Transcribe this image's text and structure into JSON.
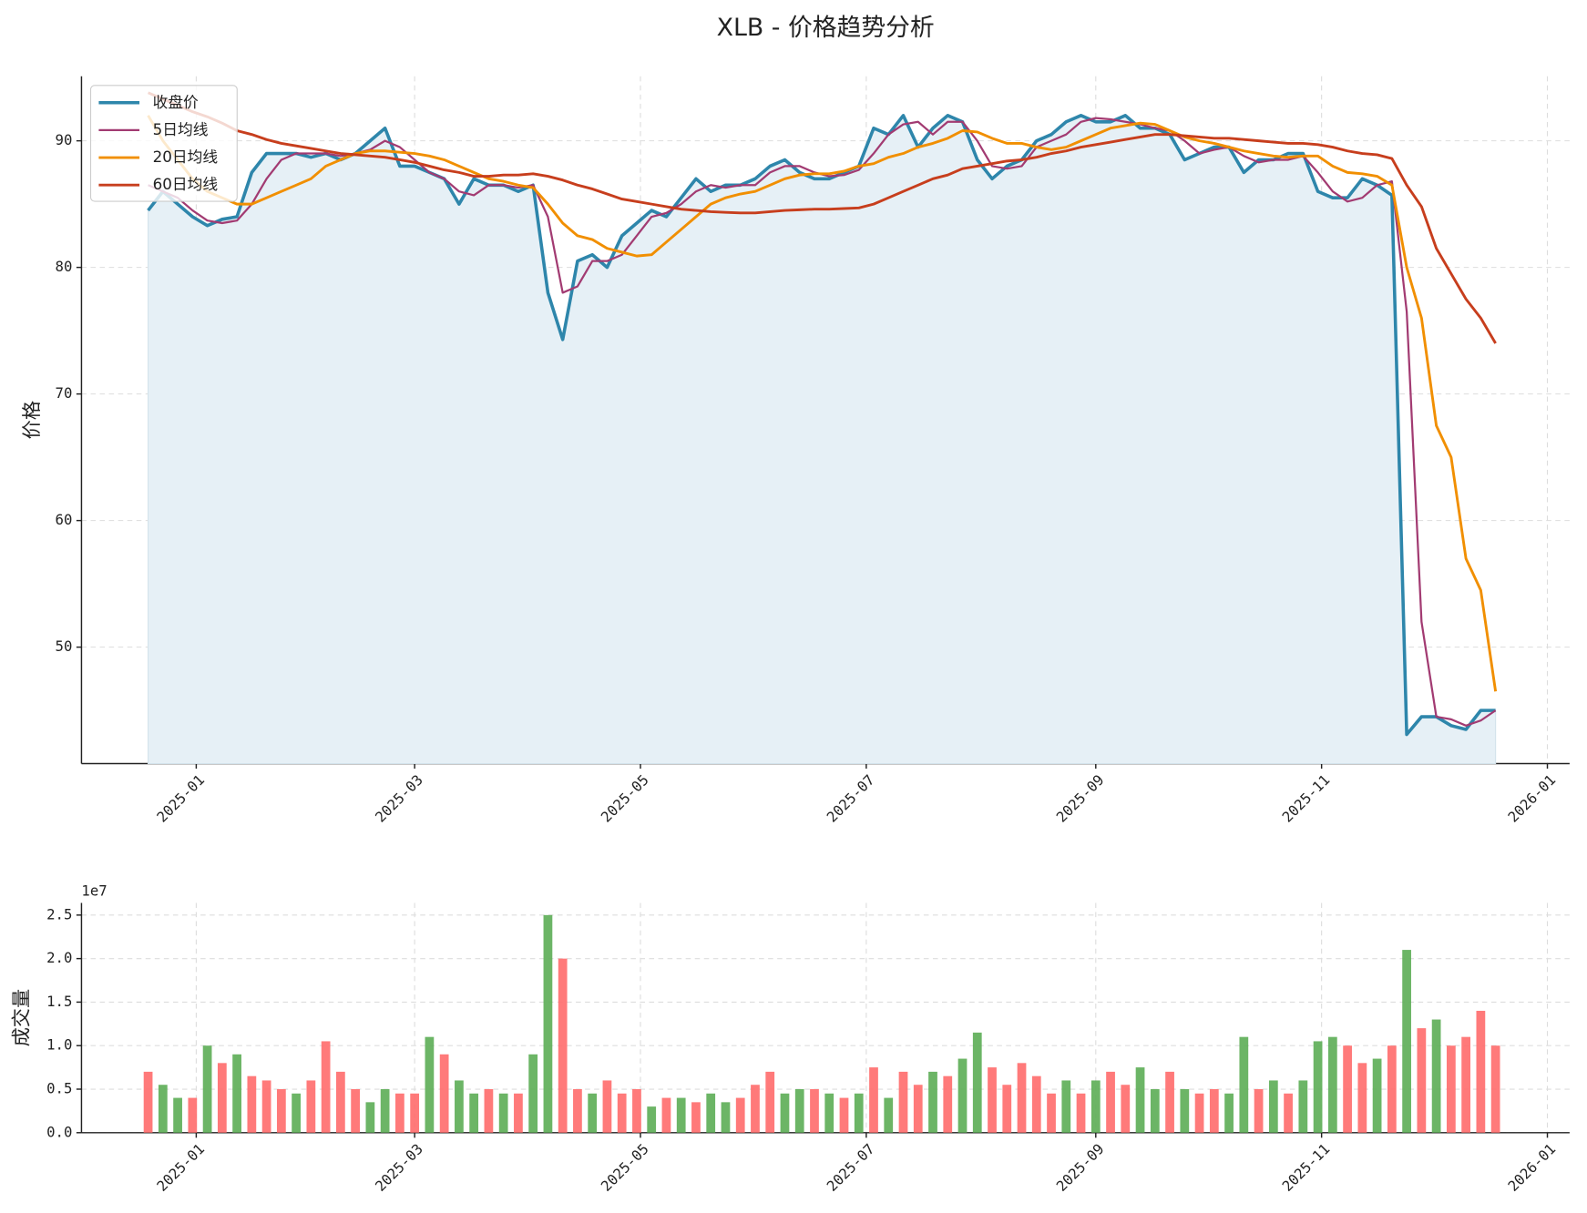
{
  "chart_data": [
    {
      "type": "line",
      "title": "XLB - 价格趋势分析",
      "y_label": "价格",
      "x": [
        20076,
        20080,
        20084,
        20088,
        20092,
        20096,
        20100,
        20104,
        20108,
        20112,
        20116,
        20120,
        20124,
        20128,
        20132,
        20136,
        20140,
        20144,
        20148,
        20152,
        20156,
        20160,
        20164,
        20168,
        20172,
        20176,
        20180,
        20184,
        20188,
        20192,
        20196,
        20200,
        20204,
        20208,
        20212,
        20216,
        20220,
        20224,
        20228,
        20232,
        20236,
        20240,
        20244,
        20248,
        20252,
        20256,
        20260,
        20264,
        20268,
        20272,
        20276,
        20280,
        20284,
        20288,
        20292,
        20296,
        20300,
        20304,
        20308,
        20312,
        20316,
        20320,
        20324,
        20328,
        20332,
        20336,
        20340,
        20344,
        20348,
        20352,
        20356,
        20360,
        20364,
        20368,
        20372,
        20376,
        20380,
        20384,
        20388,
        20392,
        20396,
        20400,
        20404,
        20408,
        20412,
        20416,
        20420,
        20424,
        20428,
        20432,
        20436,
        20440
      ],
      "xlim": [
        20058,
        20460
      ],
      "xticks": [
        {
          "value": 20089,
          "label": "2025-01"
        },
        {
          "value": 20148,
          "label": "2025-03"
        },
        {
          "value": 20209,
          "label": "2025-05"
        },
        {
          "value": 20270,
          "label": "2025-07"
        },
        {
          "value": 20332,
          "label": "2025-09"
        },
        {
          "value": 20393,
          "label": "2025-11"
        },
        {
          "value": 20454,
          "label": "2026-01"
        }
      ],
      "ylim": [
        40.8,
        95.1
      ],
      "yticks": [
        50,
        60,
        70,
        80,
        90
      ],
      "grid": true,
      "legend": "upper left",
      "series": [
        {
          "name": "收盘价",
          "color": "#2e86ab",
          "fill_color": "#e6f0f6",
          "values": [
            84.5,
            86,
            85,
            84,
            83.3,
            83.8,
            84,
            87.5,
            89,
            89,
            89,
            88.7,
            89,
            88.5,
            89,
            90,
            91,
            88,
            88,
            87.5,
            87,
            85,
            87,
            86.5,
            86.5,
            86,
            86.5,
            78,
            74.3,
            80.5,
            81,
            80,
            82.5,
            83.5,
            84.5,
            84,
            85.5,
            87,
            86,
            86.5,
            86.5,
            87,
            88,
            88.5,
            87.5,
            87,
            87,
            87.5,
            88,
            91,
            90.5,
            92,
            89.5,
            91,
            92,
            91.5,
            88.5,
            87,
            88,
            88.5,
            90,
            90.5,
            91.5,
            92,
            91.5,
            91.5,
            92,
            91,
            91,
            90.5,
            88.5,
            89,
            89.5,
            89.5,
            87.5,
            88.5,
            88.5,
            89,
            89,
            86,
            85.5,
            85.5,
            87,
            86.5,
            85.7,
            43.1,
            44.5,
            44.5,
            43.8,
            43.5,
            45,
            45
          ]
        },
        {
          "name": "5日均线",
          "color": "#a23b72",
          "values": [
            86.5,
            86,
            85.5,
            84.5,
            83.7,
            83.5,
            83.7,
            85,
            87,
            88.5,
            89,
            89,
            89,
            88.8,
            89,
            89.3,
            90,
            89.5,
            88.5,
            87.5,
            87,
            86,
            85.7,
            86.5,
            86.5,
            86.3,
            86.5,
            84,
            78,
            78.5,
            80.5,
            80.5,
            81,
            82.5,
            84,
            84.3,
            85,
            86,
            86.5,
            86.3,
            86.5,
            86.5,
            87.5,
            88,
            88,
            87.5,
            87.2,
            87.3,
            87.7,
            89,
            90.5,
            91.3,
            91.5,
            90.5,
            91.5,
            91.5,
            90,
            88,
            87.8,
            88,
            89.5,
            90,
            90.5,
            91.5,
            91.8,
            91.7,
            91.5,
            91.3,
            91,
            90.8,
            90,
            89,
            89.3,
            89.5,
            88.8,
            88.3,
            88.5,
            88.5,
            88.8,
            87.5,
            86,
            85.2,
            85.5,
            86.5,
            86.8,
            76.5,
            52,
            44.5,
            44.3,
            43.8,
            44.2,
            45
          ]
        },
        {
          "name": "20日均线",
          "color": "#f18f01",
          "values": [
            92,
            90,
            88.5,
            87,
            86,
            85.5,
            85,
            85,
            85.5,
            86,
            86.5,
            87,
            88,
            88.5,
            89,
            89.2,
            89.2,
            89.1,
            89,
            88.8,
            88.5,
            88,
            87.5,
            87,
            86.8,
            86.5,
            86.3,
            85,
            83.5,
            82.5,
            82.2,
            81.5,
            81.2,
            80.9,
            81,
            82,
            83,
            84,
            85,
            85.5,
            85.8,
            86,
            86.5,
            87,
            87.3,
            87.4,
            87.4,
            87.6,
            88,
            88.2,
            88.7,
            89,
            89.5,
            89.8,
            90.2,
            90.8,
            90.7,
            90.2,
            89.8,
            89.8,
            89.5,
            89.3,
            89.5,
            90,
            90.5,
            91,
            91.2,
            91.4,
            91.3,
            90.8,
            90.3,
            90,
            89.8,
            89.5,
            89.2,
            89,
            88.8,
            88.7,
            88.8,
            88.8,
            88,
            87.5,
            87.4,
            87.2,
            86.5,
            80,
            76,
            67.5,
            65,
            57,
            54.5,
            46.5
          ]
        },
        {
          "name": "60日均线",
          "color": "#c73e1d",
          "values": [
            93.8,
            93.3,
            92.8,
            92.3,
            91.9,
            91.4,
            90.8,
            90.5,
            90.1,
            89.8,
            89.6,
            89.4,
            89.2,
            89,
            88.9,
            88.8,
            88.7,
            88.5,
            88.3,
            88,
            87.7,
            87.5,
            87.2,
            87.2,
            87.3,
            87.3,
            87.4,
            87.2,
            86.9,
            86.5,
            86.2,
            85.8,
            85.4,
            85.2,
            85,
            84.8,
            84.6,
            84.5,
            84.4,
            84.35,
            84.3,
            84.3,
            84.4,
            84.5,
            84.55,
            84.6,
            84.6,
            84.65,
            84.7,
            85,
            85.5,
            86,
            86.5,
            87,
            87.3,
            87.8,
            88,
            88.2,
            88.4,
            88.5,
            88.7,
            89,
            89.2,
            89.5,
            89.7,
            89.9,
            90.1,
            90.3,
            90.5,
            90.5,
            90.4,
            90.3,
            90.2,
            90.2,
            90.1,
            90,
            89.9,
            89.8,
            89.8,
            89.7,
            89.5,
            89.2,
            89,
            88.9,
            88.6,
            86.5,
            84.8,
            81.5,
            79.5,
            77.5,
            76,
            74
          ]
        }
      ]
    },
    {
      "type": "bar",
      "y_label": "成交量",
      "offset_label": "1e7",
      "x": [
        20076,
        20080,
        20084,
        20088,
        20092,
        20096,
        20100,
        20104,
        20108,
        20112,
        20116,
        20120,
        20124,
        20128,
        20132,
        20136,
        20140,
        20144,
        20148,
        20152,
        20156,
        20160,
        20164,
        20168,
        20172,
        20176,
        20180,
        20184,
        20188,
        20192,
        20196,
        20200,
        20204,
        20208,
        20212,
        20216,
        20220,
        20224,
        20228,
        20232,
        20236,
        20240,
        20244,
        20248,
        20252,
        20256,
        20260,
        20264,
        20268,
        20272,
        20276,
        20280,
        20284,
        20288,
        20292,
        20296,
        20300,
        20304,
        20308,
        20312,
        20316,
        20320,
        20324,
        20328,
        20332,
        20336,
        20340,
        20344,
        20348,
        20352,
        20356,
        20360,
        20364,
        20368,
        20372,
        20376,
        20380,
        20384,
        20388,
        20392,
        20396,
        20400,
        20404,
        20408,
        20412,
        20416,
        20420,
        20424,
        20428,
        20432,
        20436,
        20440
      ],
      "xlim": [
        20058,
        20460
      ],
      "xticks": [
        {
          "value": 20089,
          "label": "2025-01"
        },
        {
          "value": 20148,
          "label": "2025-03"
        },
        {
          "value": 20209,
          "label": "2025-05"
        },
        {
          "value": 20270,
          "label": "2025-07"
        },
        {
          "value": 20332,
          "label": "2025-09"
        },
        {
          "value": 20393,
          "label": "2025-11"
        },
        {
          "value": 20454,
          "label": "2026-01"
        }
      ],
      "ylim": [
        0,
        2.64
      ],
      "yticks": [
        {
          "value": 0,
          "label": "0.0"
        },
        0.5,
        {
          "value": 1,
          "label": "1.0"
        },
        1.5,
        {
          "value": 2,
          "label": "2.0"
        },
        2.5
      ],
      "grid": true,
      "series": [
        {
          "color": "#ff6b6b",
          "values": [
            0.7,
            null,
            null,
            0.4,
            null,
            0.8,
            null,
            0.65,
            0.6,
            0.5,
            null,
            0.6,
            1.05,
            0.7,
            0.5,
            null,
            null,
            0.45,
            0.45,
            null,
            0.9,
            null,
            null,
            0.5,
            null,
            0.45,
            null,
            null,
            2.0,
            0.5,
            null,
            0.6,
            0.45,
            0.5,
            null,
            0.4,
            null,
            0.35,
            null,
            null,
            0.4,
            0.55,
            0.7,
            null,
            null,
            0.5,
            null,
            0.4,
            null,
            0.75,
            null,
            0.7,
            0.55,
            null,
            0.65,
            null,
            null,
            0.75,
            0.55,
            0.8,
            0.65,
            0.45,
            null,
            0.45,
            null,
            0.7,
            0.55,
            null,
            null,
            0.7,
            null,
            0.45,
            0.5,
            null,
            null,
            0.5,
            null,
            0.45,
            null,
            null,
            null,
            1.0,
            0.8,
            null,
            1.0,
            null,
            1.2,
            null,
            1.0,
            1.1,
            1.4,
            1.0
          ]
        },
        {
          "color": "#5cad55",
          "values": [
            null,
            0.55,
            0.4,
            null,
            1.0,
            null,
            0.9,
            null,
            null,
            null,
            0.45,
            null,
            null,
            null,
            null,
            0.35,
            0.5,
            null,
            null,
            1.1,
            null,
            0.6,
            0.45,
            null,
            0.45,
            null,
            0.9,
            2.5,
            null,
            null,
            0.45,
            null,
            null,
            null,
            0.3,
            null,
            0.4,
            null,
            0.45,
            0.35,
            null,
            null,
            null,
            0.45,
            0.5,
            null,
            0.45,
            null,
            0.45,
            null,
            0.4,
            null,
            null,
            0.7,
            null,
            0.85,
            1.15,
            null,
            null,
            null,
            null,
            null,
            0.6,
            null,
            0.6,
            null,
            null,
            0.75,
            0.5,
            null,
            0.5,
            null,
            null,
            0.45,
            1.1,
            null,
            0.6,
            null,
            0.6,
            1.05,
            1.1,
            null,
            null,
            0.85,
            null,
            2.1,
            null,
            1.3,
            null,
            null,
            null,
            null
          ]
        }
      ]
    }
  ]
}
